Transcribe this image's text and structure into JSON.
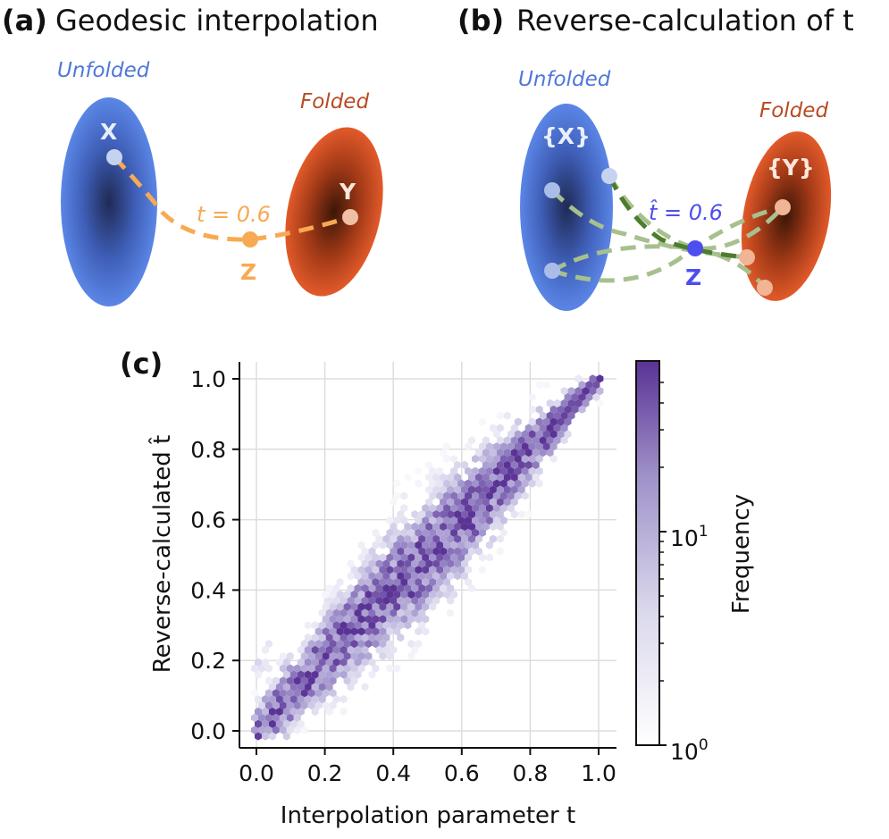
{
  "panel_a": {
    "tag": "(a)",
    "title": "Geodesic interpolation",
    "unfolded_label": "Unfolded",
    "folded_label": "Folded",
    "x_label": "X",
    "y_label": "Y",
    "z_label": "Z",
    "t_label": "t = 0.6"
  },
  "panel_b": {
    "tag": "(b)",
    "title": "Reverse-calculation of t",
    "unfolded_label": "Unfolded",
    "folded_label": "Folded",
    "x_set_label": "{X}",
    "y_set_label": "{Y}",
    "z_label": "Z",
    "t_hat_label": "t̂ = 0.6"
  },
  "colors": {
    "unfolded_blue": "#4f77d9",
    "folded_orange": "#d8542a",
    "geodesic_orange": "#f7aa52",
    "estimate_blue": "#4d4ef0",
    "green_dark": "#4c7d2e",
    "green_light": "#a7c08e",
    "hex_dark": "#5a3395"
  },
  "chart_data": {
    "type": "hexbin",
    "panel_tag": "(c)",
    "xlabel": "Interpolation parameter t",
    "ylabel": "Reverse-calculated t̂",
    "xlim": [
      -0.05,
      1.05
    ],
    "ylim": [
      -0.05,
      1.05
    ],
    "xticks": [
      "0.0",
      "0.2",
      "0.4",
      "0.6",
      "0.8",
      "1.0"
    ],
    "yticks": [
      "0.0",
      "0.2",
      "0.4",
      "0.6",
      "0.8",
      "1.0"
    ],
    "grid": true,
    "colorbar": {
      "label": "Frequency",
      "scale": "log",
      "range": [
        1,
        60
      ],
      "tick_labels": [
        "10",
        "10"
      ],
      "tick_exponents": [
        "0",
        "1"
      ]
    },
    "trend": {
      "description": "t̂ ≈ t; spread widest mid-range (≈±0.1 around t=0.5–0.7), tight near t=1",
      "center_points": [
        [
          0.0,
          0.03
        ],
        [
          0.1,
          0.1
        ],
        [
          0.2,
          0.2
        ],
        [
          0.3,
          0.3
        ],
        [
          0.4,
          0.41
        ],
        [
          0.5,
          0.52
        ],
        [
          0.6,
          0.6
        ],
        [
          0.7,
          0.69
        ],
        [
          0.8,
          0.78
        ],
        [
          0.9,
          0.88
        ],
        [
          1.0,
          1.0
        ]
      ],
      "outlier_cluster": "low-frequency bins around t 0.0–0.2, t̂ 0.15–0.3"
    }
  }
}
